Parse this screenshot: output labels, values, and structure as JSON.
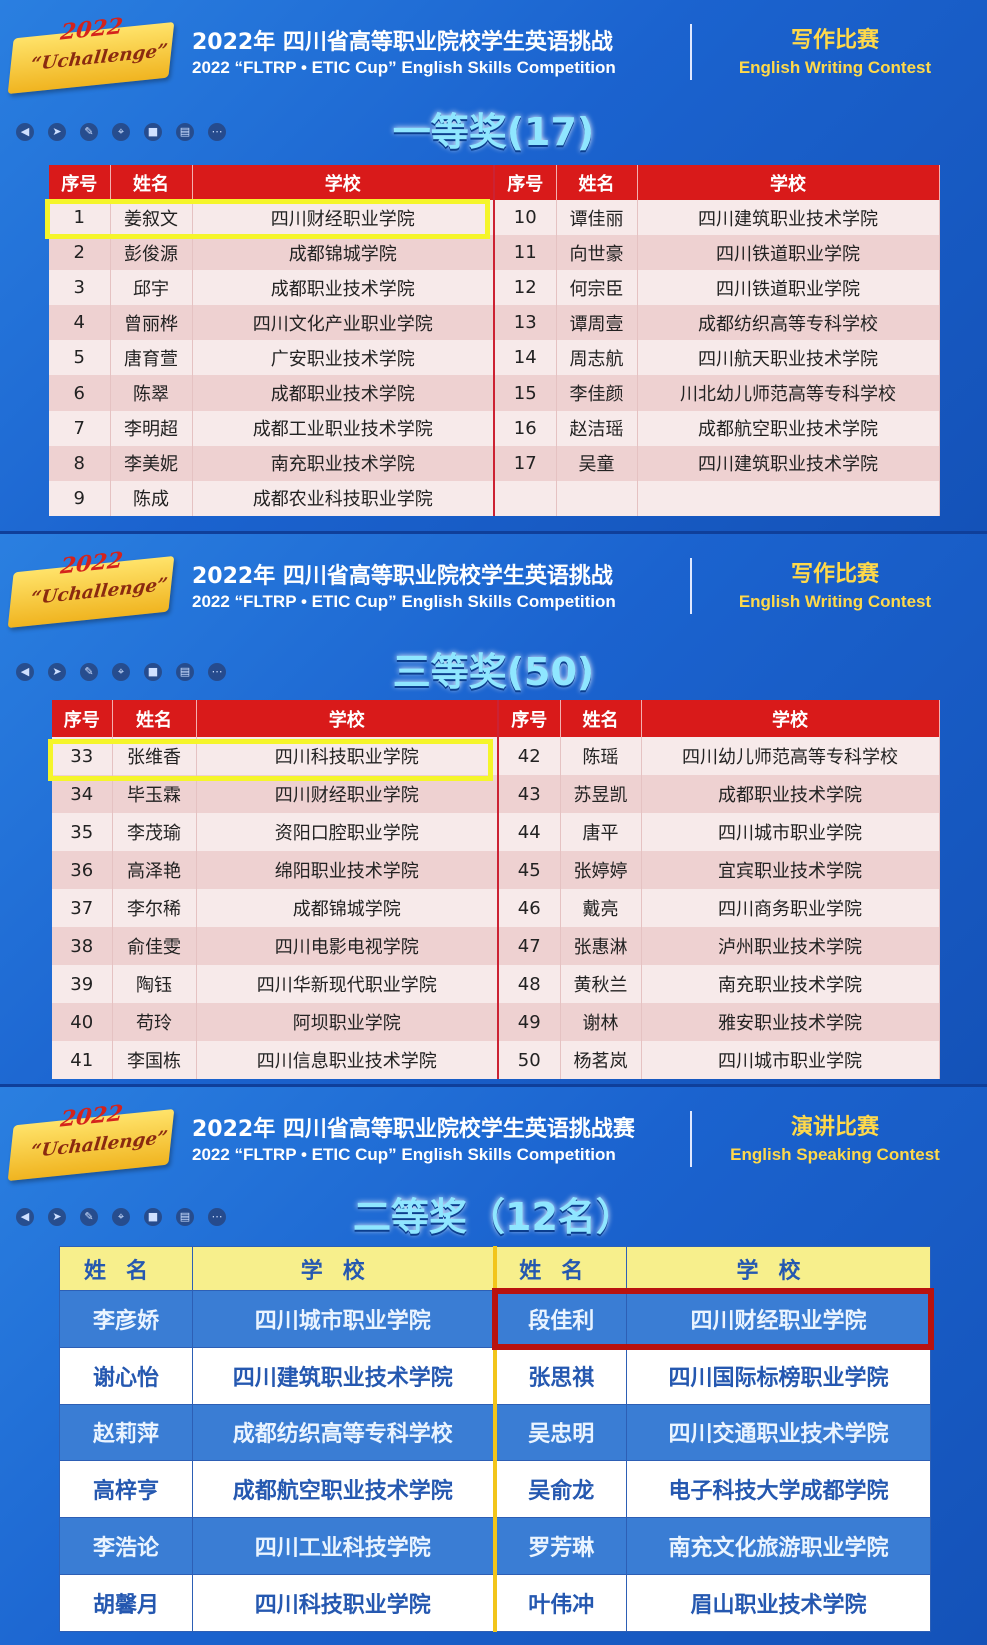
{
  "slides": [
    {
      "logo": {
        "year": "2022",
        "text": "“Uchallenge”"
      },
      "title_cn": "2022年 四川省高等职业院校学生英语挑战",
      "title_en": "2022 “FLTRP • ETIC Cup” English Skills Competition",
      "contest_cn": "写作比赛",
      "contest_en": "English Writing Contest",
      "award": "一等奖(17)",
      "headers": [
        "序号",
        "姓名",
        "学校",
        "序号",
        "姓名",
        "学校"
      ],
      "rows": [
        [
          "1",
          "姜叙文",
          "四川财经职业学院",
          "10",
          "谭佳丽",
          "四川建筑职业技术学院"
        ],
        [
          "2",
          "彭俊源",
          "成都锦城学院",
          "11",
          "向世豪",
          "四川铁道职业学院"
        ],
        [
          "3",
          "邱宇",
          "成都职业技术学院",
          "12",
          "何宗臣",
          "四川铁道职业学院"
        ],
        [
          "4",
          "曾丽桦",
          "四川文化产业职业学院",
          "13",
          "谭周壹",
          "成都纺织高等专科学校"
        ],
        [
          "5",
          "唐育萱",
          "广安职业技术学院",
          "14",
          "周志航",
          "四川航天职业技术学院"
        ],
        [
          "6",
          "陈翠",
          "成都职业技术学院",
          "15",
          "李佳颜",
          "川北幼儿师范高等专科学校"
        ],
        [
          "7",
          "李明超",
          "成都工业职业技术学院",
          "16",
          "赵洁瑶",
          "成都航空职业技术学院"
        ],
        [
          "8",
          "李美妮",
          "南充职业技术学院",
          "17",
          "吴童",
          "四川建筑职业技术学院"
        ],
        [
          "9",
          "陈成",
          "成都农业科技职业学院",
          "",
          "",
          ""
        ]
      ]
    },
    {
      "logo": {
        "year": "2022",
        "text": "“Uchallenge”"
      },
      "title_cn": "2022年 四川省高等职业院校学生英语挑战",
      "title_en": "2022 “FLTRP • ETIC Cup” English Skills Competition",
      "contest_cn": "写作比赛",
      "contest_en": "English Writing Contest",
      "award": "三等奖(50)",
      "headers": [
        "序号",
        "姓名",
        "学校",
        "序号",
        "姓名",
        "学校"
      ],
      "rows": [
        [
          "33",
          "张维香",
          "四川科技职业学院",
          "42",
          "陈瑶",
          "四川幼儿师范高等专科学校"
        ],
        [
          "34",
          "毕玉霖",
          "四川财经职业学院",
          "43",
          "苏昱凯",
          "成都职业技术学院"
        ],
        [
          "35",
          "李茂瑜",
          "资阳口腔职业学院",
          "44",
          "唐平",
          "四川城市职业学院"
        ],
        [
          "36",
          "高泽艳",
          "绵阳职业技术学院",
          "45",
          "张婷婷",
          "宜宾职业技术学院"
        ],
        [
          "37",
          "李尔稀",
          "成都锦城学院",
          "46",
          "戴亮",
          "四川商务职业学院"
        ],
        [
          "38",
          "俞佳雯",
          "四川电影电视学院",
          "47",
          "张惠淋",
          "泸州职业技术学院"
        ],
        [
          "39",
          "陶钰",
          "四川华新现代职业学院",
          "48",
          "黄秋兰",
          "南充职业技术学院"
        ],
        [
          "40",
          "苟玲",
          "阿坝职业学院",
          "49",
          "谢林",
          "雅安职业技术学院"
        ],
        [
          "41",
          "李国栋",
          "四川信息职业技术学院",
          "50",
          "杨茗岚",
          "四川城市职业学院"
        ]
      ]
    },
    {
      "logo": {
        "year": "2022",
        "text": "“Uchallenge”"
      },
      "title_cn": "2022年 四川省高等职业院校学生英语挑战赛",
      "title_en": "2022 “FLTRP • ETIC Cup” English Skills Competition",
      "contest_cn": "演讲比赛",
      "contest_en": "English Speaking Contest",
      "award": "二等奖（12名）",
      "headers": [
        "姓名",
        "学校",
        "姓名",
        "学校"
      ],
      "rows": [
        [
          "李彦娇",
          "四川城市职业学院",
          "段佳利",
          "四川财经职业学院"
        ],
        [
          "谢心怡",
          "四川建筑职业技术学院",
          "张思祺",
          "四川国际标榜职业学院"
        ],
        [
          "赵莉萍",
          "成都纺织高等专科学校",
          "吴忠明",
          "四川交通职业技术学院"
        ],
        [
          "高梓亨",
          "成都航空职业技术学院",
          "吴俞龙",
          "电子科技大学成都学院"
        ],
        [
          "李浩论",
          "四川工业科技学院",
          "罗芳琳",
          "南充文化旅游职业学院"
        ],
        [
          "胡馨月",
          "四川科技职业学院",
          "叶伟冲",
          "眉山职业技术学院"
        ]
      ]
    }
  ],
  "toolbar_icons": [
    "arrow-left-icon",
    "pointer-icon",
    "pen-icon",
    "focus-icon",
    "camera-icon",
    "comment-icon",
    "more-icon"
  ],
  "colors": {
    "header_red": "#d91a1a",
    "highlight_yellow": "#f5f52a",
    "highlight_red": "#b8120e",
    "title_gold": "#ffd94a"
  }
}
